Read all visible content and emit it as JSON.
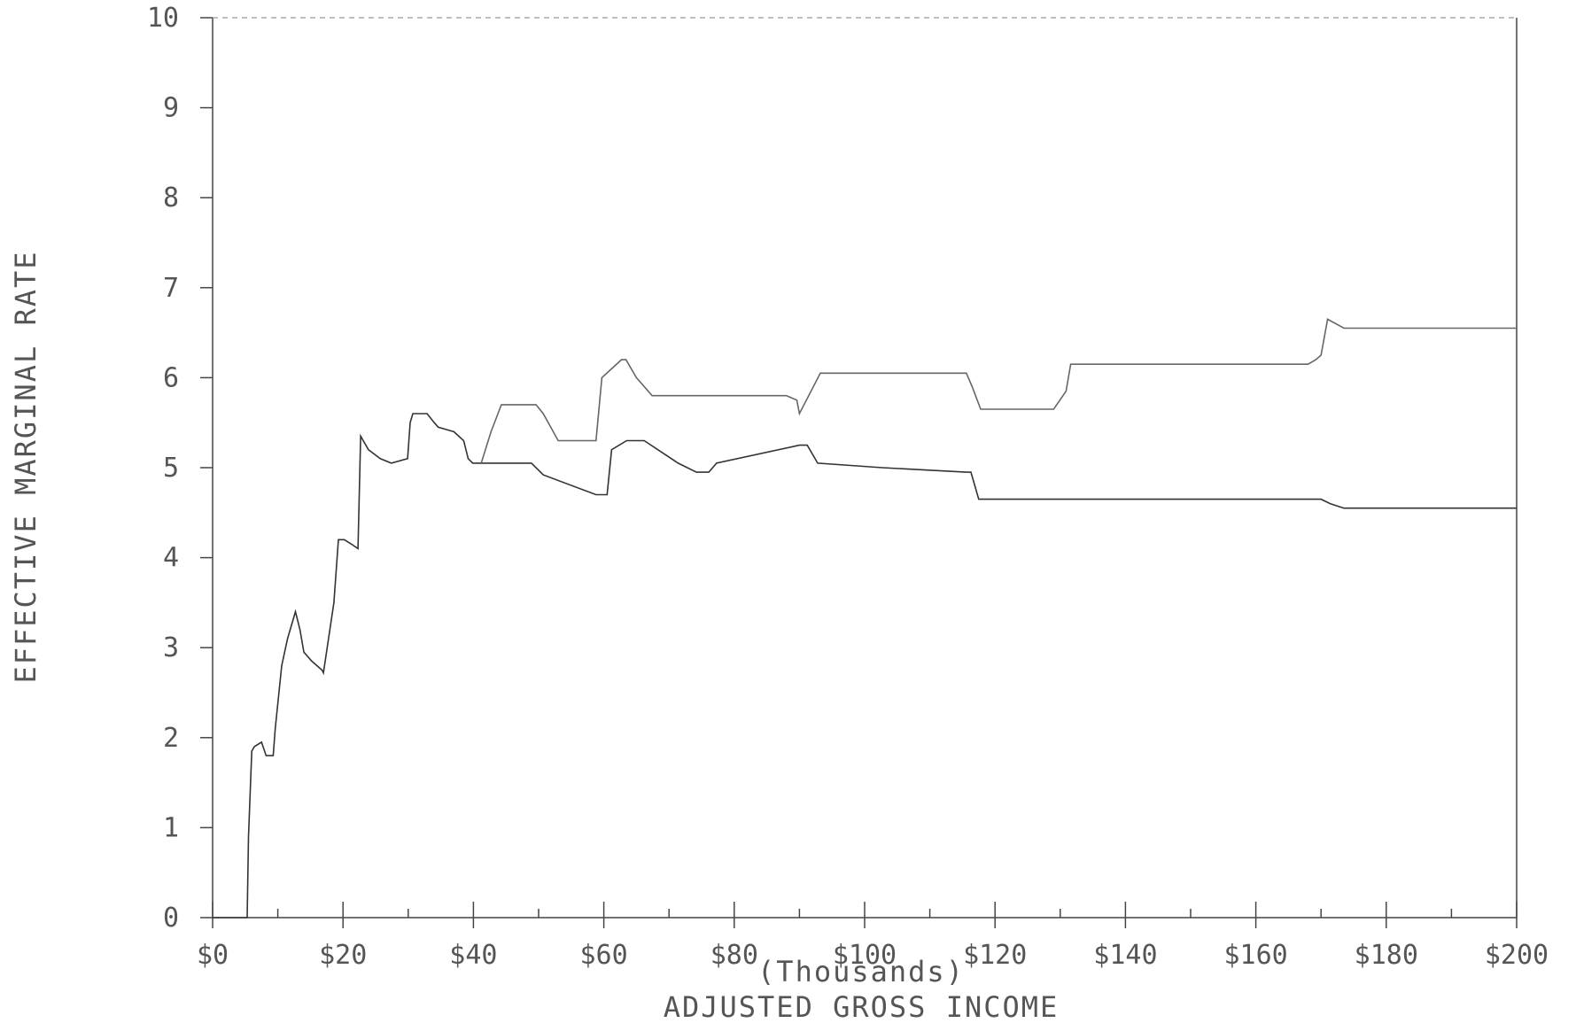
{
  "chart_data": {
    "type": "line",
    "title": "",
    "xlabel": "ADJUSTED GROSS INCOME",
    "xlabel_sub": "(Thousands)",
    "ylabel": "EFFECTIVE MARGINAL RATE",
    "xlim": [
      0,
      200
    ],
    "ylim": [
      0,
      10
    ],
    "x_ticks": [
      0,
      20,
      40,
      60,
      80,
      100,
      120,
      140,
      160,
      180,
      200
    ],
    "x_tick_labels": [
      "$0",
      "$20",
      "$40",
      "$60",
      "$80",
      "$100",
      "$120",
      "$140",
      "$160",
      "$180",
      "$200"
    ],
    "x_minor_step": 10,
    "y_ticks": [
      0,
      1,
      2,
      3,
      4,
      5,
      6,
      7,
      8,
      9,
      10
    ],
    "y_tick_labels": [
      "0",
      "1",
      "2",
      "3",
      "4",
      "5",
      "6",
      "7",
      "8",
      "9",
      "10"
    ],
    "grid": false,
    "series": [
      {
        "color": "#333333",
        "x": [
          0,
          5.3,
          5.5,
          6.0,
          6.4,
          7.5,
          8.2,
          9.3,
          9.6,
          10.6,
          11.5,
          12.7,
          13.4,
          14.0,
          15.2,
          16.8,
          17.0,
          18.6,
          19.3,
          20.2,
          21.3,
          22.3,
          22.7,
          23.9,
          25.7,
          27.4,
          29.9,
          30.3,
          30.7,
          32.9,
          34.0,
          34.6,
          37.0,
          38.5,
          39.2,
          39.9,
          41.2,
          45.0,
          48.9,
          50.7,
          58.8,
          60.5,
          61.2,
          63.5,
          66.2,
          71.4,
          74.2,
          76.1,
          77.3,
          90.0,
          91.2,
          92.8,
          102.7,
          115.6,
          116.3,
          117.5,
          128.9,
          130.0,
          131.5,
          170.0,
          171.4,
          173.5,
          190.0,
          200.0
        ],
        "y": [
          0,
          0,
          0.9,
          1.85,
          1.9,
          1.95,
          1.8,
          1.8,
          2.1,
          2.8,
          3.1,
          3.4,
          3.2,
          2.95,
          2.85,
          2.75,
          2.72,
          3.5,
          4.2,
          4.2,
          4.15,
          4.1,
          5.35,
          5.2,
          5.1,
          5.05,
          5.1,
          5.5,
          5.6,
          5.6,
          5.5,
          5.45,
          5.4,
          5.3,
          5.1,
          5.05,
          5.05,
          5.05,
          5.05,
          4.92,
          4.7,
          4.7,
          5.2,
          5.3,
          5.3,
          5.05,
          4.95,
          4.95,
          5.05,
          5.25,
          5.25,
          5.05,
          5.0,
          4.95,
          4.95,
          4.65,
          4.65,
          4.65,
          4.65,
          4.65,
          4.6,
          4.55,
          4.55,
          4.55
        ]
      },
      {
        "color": "#666666",
        "x": [
          41.2,
          42.7,
          44.3,
          47.2,
          49.6,
          50.7,
          53.0,
          57.8,
          58.8,
          59.7,
          62.7,
          63.4,
          65.0,
          67.4,
          77.3,
          88.0,
          89.6,
          90.0,
          93.2,
          101.0,
          108.0,
          115.6,
          116.5,
          117.8,
          120.0,
          126.0,
          129.0,
          130.9,
          131.6,
          144.0,
          154.0,
          161.0,
          168.0,
          169.2,
          170.0,
          171.0,
          173.5,
          185.0,
          200.0
        ],
        "y": [
          5.05,
          5.4,
          5.7,
          5.7,
          5.7,
          5.6,
          5.3,
          5.3,
          5.3,
          6.0,
          6.2,
          6.2,
          6.0,
          5.8,
          5.8,
          5.8,
          5.75,
          5.6,
          6.05,
          6.05,
          6.05,
          6.05,
          5.9,
          5.65,
          5.65,
          5.65,
          5.65,
          5.85,
          6.15,
          6.15,
          6.15,
          6.15,
          6.15,
          6.2,
          6.25,
          6.65,
          6.55,
          6.55,
          6.55
        ]
      }
    ]
  }
}
